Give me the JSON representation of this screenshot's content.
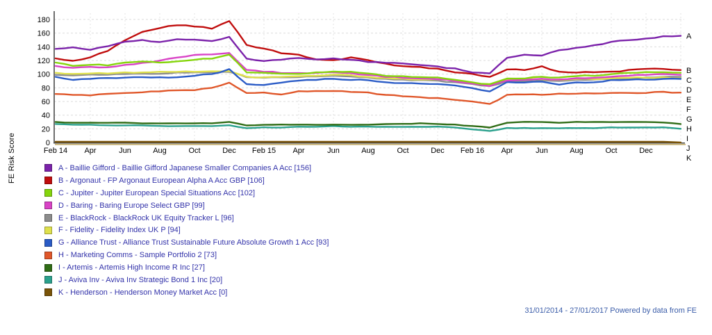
{
  "ui": {
    "legend_text_color": "#3333AA",
    "footer": {
      "text": "31/01/2014 - 27/01/2017 Powered by data from FE",
      "color": "#3B5DA9"
    }
  },
  "chart_data": {
    "type": "line",
    "title": "",
    "xlabel": "",
    "ylabel": "FE Risk Score",
    "ylim": [
      0,
      180
    ],
    "y_ticks": [
      0,
      20,
      40,
      60,
      80,
      100,
      120,
      140,
      160,
      180
    ],
    "grid": "dashed",
    "legend_position": "bottom-left",
    "x_range_note": "monthly points from Feb 2014 (index 0) to late Jan 2017 (index 36)",
    "x_ticks": [
      {
        "m": 0,
        "label": "Feb 14"
      },
      {
        "m": 2,
        "label": "Apr"
      },
      {
        "m": 4,
        "label": "Jun"
      },
      {
        "m": 6,
        "label": "Aug"
      },
      {
        "m": 8,
        "label": "Oct"
      },
      {
        "m": 10,
        "label": "Dec"
      },
      {
        "m": 12,
        "label": "Feb 15"
      },
      {
        "m": 14,
        "label": "Apr"
      },
      {
        "m": 16,
        "label": "Jun"
      },
      {
        "m": 18,
        "label": "Aug"
      },
      {
        "m": 20,
        "label": "Oct"
      },
      {
        "m": 22,
        "label": "Dec"
      },
      {
        "m": 24,
        "label": "Feb 16"
      },
      {
        "m": 26,
        "label": "Apr"
      },
      {
        "m": 28,
        "label": "Jun"
      },
      {
        "m": 30,
        "label": "Aug"
      },
      {
        "m": 32,
        "label": "Oct"
      },
      {
        "m": 34,
        "label": "Dec"
      }
    ],
    "style": {
      "axis_color": "#4A4A4A",
      "axis_shadow_color": "#C7B377",
      "h_grid_color": "#DBDBDB",
      "v_grid_color": "#E3E3E3",
      "label_color": "#000000"
    },
    "series": [
      {
        "letter": "A",
        "final_score": 156,
        "color": "#7B22AA",
        "label": "A - Baillie Gifford - Baillie Gifford Japanese Smaller Companies A Acc [156]",
        "values": [
          137,
          139,
          136,
          141,
          148,
          150,
          147,
          151,
          150,
          148,
          154,
          123,
          119,
          121,
          124,
          122,
          123,
          121,
          118,
          117,
          116,
          113,
          111,
          108,
          103,
          101,
          124,
          128,
          127,
          135,
          139,
          142,
          147,
          150,
          152,
          155,
          156
        ]
      },
      {
        "letter": "B",
        "final_score": 106,
        "color": "#C00D0D",
        "label": "B - Argonaut - FP Argonaut European Alpha A Acc GBP [106]",
        "values": [
          123,
          119,
          125,
          134,
          150,
          162,
          168,
          172,
          170,
          167,
          178,
          143,
          137,
          131,
          128,
          122,
          120,
          124,
          121,
          115,
          112,
          110,
          108,
          103,
          100,
          96,
          107,
          106,
          111,
          103,
          102,
          103,
          103,
          106,
          108,
          107,
          106
        ]
      },
      {
        "letter": "C",
        "final_score": 102,
        "color": "#85D50C",
        "label": "C - Jupiter - Jupiter European Special Situations Acc [102]",
        "values": [
          117,
          112,
          114,
          113,
          117,
          119,
          117,
          119,
          121,
          123,
          128,
          103,
          102,
          101,
          100,
          102,
          104,
          103,
          101,
          98,
          97,
          96,
          95,
          92,
          88,
          85,
          93,
          94,
          96,
          95,
          97,
          98,
          100,
          102,
          103,
          103,
          102
        ]
      },
      {
        "letter": "D",
        "final_score": 99,
        "color": "#D943C6",
        "label": "D - Baring - Baring Europe Select GBP [99]",
        "values": [
          112,
          109,
          111,
          110,
          113,
          116,
          120,
          124,
          128,
          129,
          131,
          106,
          104,
          102,
          101,
          102,
          103,
          101,
          99,
          96,
          95,
          94,
          93,
          90,
          86,
          83,
          91,
          92,
          93,
          92,
          94,
          95,
          96,
          98,
          99,
          100,
          99
        ]
      },
      {
        "letter": "E",
        "final_score": 96,
        "color": "#8C8C8C",
        "label": "E - BlackRock - BlackRock UK Equity Tracker L [96]",
        "values": [
          99,
          98,
          99,
          99,
          100,
          101,
          101,
          102,
          103,
          103,
          103,
          96,
          95,
          95,
          96,
          97,
          98,
          97,
          95,
          93,
          92,
          91,
          90,
          88,
          85,
          82,
          90,
          90,
          91,
          90,
          92,
          92,
          93,
          94,
          95,
          96,
          96
        ]
      },
      {
        "letter": "F",
        "final_score": 94,
        "color": "#DFE14D",
        "label": "F - Fidelity - Fidelity Index UK P [94]",
        "values": [
          102,
          100,
          101,
          101,
          102,
          102,
          103,
          103,
          104,
          104,
          104,
          96,
          95,
          96,
          97,
          98,
          99,
          98,
          96,
          94,
          93,
          92,
          92,
          91,
          88,
          85,
          92,
          92,
          93,
          92,
          93,
          93,
          94,
          95,
          95,
          95,
          94
        ]
      },
      {
        "letter": "G",
        "final_score": 93,
        "color": "#2A5BC6",
        "label": "G - Alliance Trust - Alliance Trust Sustainable Future Absolute Growth 1 Acc [93]",
        "values": [
          96,
          92,
          93,
          94,
          95,
          96,
          95,
          96,
          98,
          100,
          107,
          86,
          84,
          88,
          91,
          92,
          93,
          92,
          91,
          88,
          87,
          86,
          85,
          83,
          79,
          75,
          88,
          88,
          89,
          85,
          88,
          88,
          91,
          92,
          92,
          93,
          93
        ]
      },
      {
        "letter": "H",
        "final_score": 73,
        "color": "#E0572A",
        "label": "H - Marketing Comms - Sample Portfolio 2 [73]",
        "values": [
          71,
          70,
          69,
          71,
          73,
          74,
          75,
          76,
          77,
          80,
          88,
          72,
          73,
          70,
          75,
          75,
          75,
          74,
          73,
          70,
          68,
          66,
          65,
          63,
          60,
          56,
          70,
          70,
          70,
          71,
          71,
          72,
          72,
          72,
          73,
          74,
          73
        ]
      },
      {
        "letter": "I",
        "final_score": 27,
        "color": "#2F6C15",
        "label": "I - Artemis - Artemis High Income R Inc [27]",
        "values": [
          30,
          29,
          29,
          29,
          29,
          28,
          28,
          28,
          28,
          28,
          30,
          25,
          26,
          26,
          26,
          26,
          26,
          26,
          26,
          27,
          27,
          28,
          27,
          26,
          24,
          22,
          29,
          30,
          30,
          29,
          30,
          30,
          30,
          30,
          30,
          29,
          27
        ]
      },
      {
        "letter": "J",
        "final_score": 20,
        "color": "#2BA18D",
        "label": "J - Aviva Inv - Aviva Inv Strategic Bond 1 Inc [20]",
        "values": [
          27,
          26,
          26,
          25,
          25,
          25,
          24,
          24,
          24,
          24,
          25,
          21,
          22,
          22,
          23,
          23,
          24,
          23,
          23,
          23,
          23,
          23,
          23,
          22,
          19,
          17,
          21,
          21,
          21,
          21,
          21,
          21,
          22,
          22,
          22,
          22,
          20
        ]
      },
      {
        "letter": "K",
        "final_score": 0,
        "color": "#7A5408",
        "label": "K - Henderson - Henderson Money Market Acc [0]",
        "values": [
          1,
          1,
          1,
          1,
          1,
          1,
          1,
          1,
          1,
          1,
          1,
          1,
          1,
          1,
          1,
          1,
          1,
          1,
          1,
          1,
          1,
          1,
          1,
          1,
          1,
          1,
          1,
          1,
          1,
          1,
          1,
          1,
          1,
          1,
          1,
          1,
          0
        ]
      }
    ]
  }
}
